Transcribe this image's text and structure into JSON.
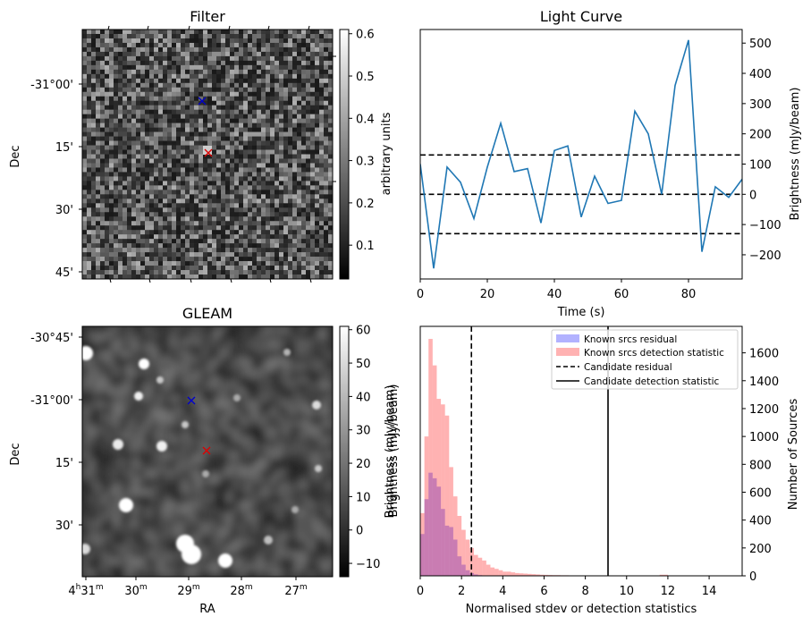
{
  "panels": {
    "filter": {
      "title": "Filter",
      "ylabel": "Dec",
      "dec_ticks": [
        "-31°00'",
        "15'",
        "30'",
        "45'"
      ],
      "colorbar": {
        "label": "arbitrary units",
        "ticks": [
          "0.1",
          "0.2",
          "0.3",
          "0.4",
          "0.5",
          "0.6"
        ],
        "range": [
          0.02,
          0.61
        ]
      },
      "markers": [
        {
          "name": "blue-cross",
          "color": "#0000cc"
        },
        {
          "name": "red-cross",
          "color": "#dd0000"
        }
      ]
    },
    "gleam": {
      "title": "GLEAM",
      "ylabel": "Dec",
      "xlabel": "RA",
      "dec_ticks": [
        "-30°45'",
        "-31°00'",
        "15'",
        "30'"
      ],
      "ra_ticks": [
        {
          "h": "4",
          "hu": "h",
          "m": "31",
          "mu": "m"
        },
        {
          "h": "",
          "hu": "",
          "m": "30",
          "mu": "m"
        },
        {
          "h": "",
          "hu": "",
          "m": "29",
          "mu": "m"
        },
        {
          "h": "",
          "hu": "",
          "m": "28",
          "mu": "m"
        },
        {
          "h": "",
          "hu": "",
          "m": "27",
          "mu": "m"
        }
      ],
      "colorbar": {
        "label": "Brightness (mJy/beam)",
        "ticks": [
          "−10",
          "0",
          "10",
          "20",
          "30",
          "40",
          "50",
          "60"
        ],
        "range": [
          -14,
          61
        ]
      },
      "markers": [
        {
          "name": "blue-cross",
          "color": "#0000cc"
        },
        {
          "name": "red-cross",
          "color": "#dd0000"
        }
      ]
    }
  },
  "chart_data": [
    {
      "type": "line",
      "title": "Light Curve",
      "xlabel": "Time (s)",
      "ylabel": "Brightness (mJy/beam)",
      "xlim": [
        0,
        96
      ],
      "ylim": [
        -280,
        545
      ],
      "x_ticks": [
        0,
        20,
        40,
        60,
        80
      ],
      "y_ticks": [
        -200,
        -100,
        0,
        100,
        200,
        300,
        400,
        500
      ],
      "x": [
        0,
        4,
        8,
        12,
        16,
        20,
        24,
        28,
        32,
        36,
        40,
        44,
        48,
        52,
        56,
        60,
        64,
        68,
        72,
        76,
        80,
        84,
        88,
        92,
        96
      ],
      "values": [
        100,
        -245,
        90,
        40,
        -80,
        90,
        235,
        75,
        85,
        -95,
        145,
        160,
        -75,
        60,
        -30,
        -20,
        275,
        200,
        0,
        360,
        510,
        -190,
        25,
        -10,
        50
      ],
      "color": "#1f77b4",
      "hlines": [
        130,
        0,
        -130
      ],
      "hline_style": "dashed",
      "y_axis_side": "right",
      "grid": false
    },
    {
      "type": "bar",
      "xlabel": "Normalised stdev or detection statistics",
      "ylabel_left": "Brightness (mJy/beam)",
      "ylabel_right": "Number of Sources",
      "xlim": [
        0,
        15.6
      ],
      "ylim": [
        0,
        1790
      ],
      "x_ticks": [
        0,
        2,
        4,
        6,
        8,
        10,
        12,
        14
      ],
      "y_ticks": [
        0,
        200,
        400,
        600,
        800,
        1000,
        1200,
        1400,
        1600
      ],
      "bin_width": 0.2,
      "legend_position": "top-right",
      "grid": false,
      "series": [
        {
          "name": "Known srcs residual",
          "color": "#0000ff",
          "alpha": 0.3,
          "values": [
            300,
            550,
            740,
            700,
            640,
            480,
            360,
            350,
            260,
            140,
            80,
            40,
            20,
            10,
            5
          ]
        },
        {
          "name": "Known srcs detection statistic",
          "color": "#ff0000",
          "alpha": 0.3,
          "values": [
            450,
            1000,
            1700,
            1510,
            1270,
            1230,
            1150,
            780,
            570,
            430,
            330,
            260,
            200,
            150,
            130,
            110,
            80,
            60,
            50,
            40,
            30,
            30,
            25,
            20,
            18,
            16,
            14,
            12,
            10,
            8,
            7,
            6,
            5,
            5,
            4,
            4,
            3,
            3,
            3,
            2,
            2,
            2,
            2,
            2,
            2,
            2,
            2,
            2,
            2,
            2,
            2,
            2,
            2,
            2,
            1,
            1,
            1,
            1,
            8,
            8,
            1,
            1,
            1,
            1,
            1,
            1,
            1,
            1,
            1,
            1,
            1,
            1,
            1,
            1,
            1,
            1,
            1
          ]
        }
      ],
      "vlines": [
        {
          "name": "Candidate residual",
          "x": 2.48,
          "style": "dashed"
        },
        {
          "name": "Candidate detection statistic",
          "x": 9.1,
          "style": "solid"
        }
      ]
    }
  ]
}
